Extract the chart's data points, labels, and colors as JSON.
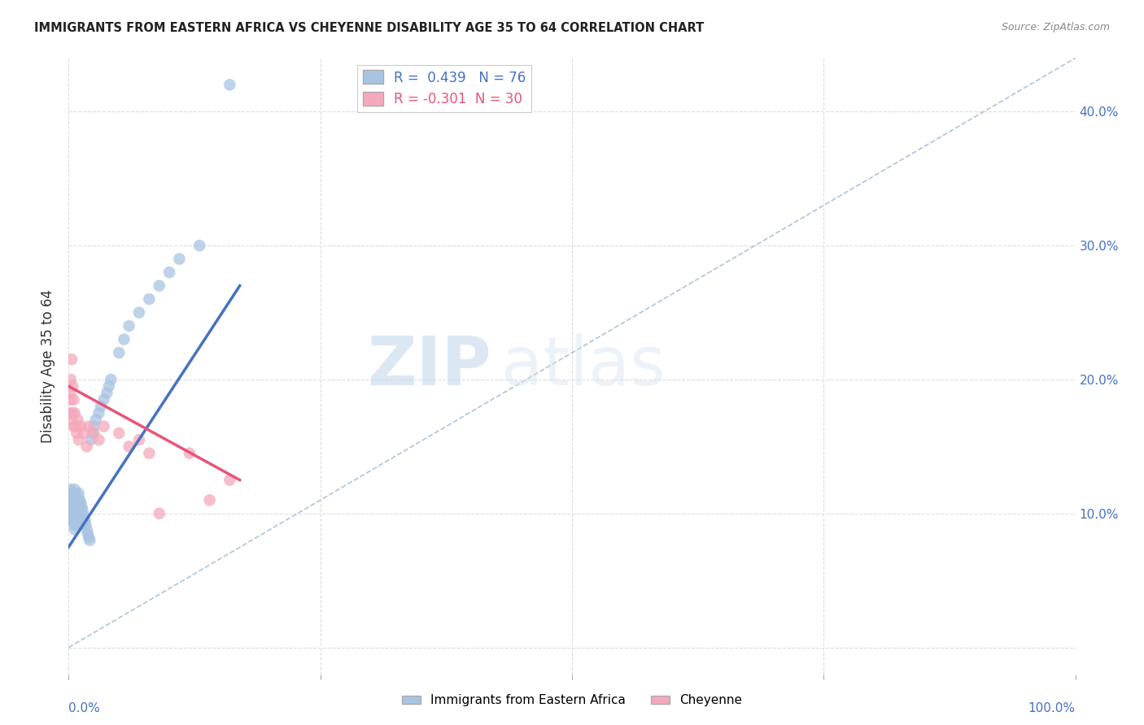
{
  "title": "IMMIGRANTS FROM EASTERN AFRICA VS CHEYENNE DISABILITY AGE 35 TO 64 CORRELATION CHART",
  "source": "Source: ZipAtlas.com",
  "ylabel": "Disability Age 35 to 64",
  "xlim": [
    0.0,
    1.0
  ],
  "ylim": [
    -0.02,
    0.44
  ],
  "yticks": [
    0.0,
    0.1,
    0.2,
    0.3,
    0.4
  ],
  "ytick_labels": [
    "",
    "10.0%",
    "20.0%",
    "30.0%",
    "40.0%"
  ],
  "xticks": [
    0.0,
    0.25,
    0.5,
    0.75,
    1.0
  ],
  "xtick_labels": [
    "0.0%",
    "",
    "",
    "",
    "100.0%"
  ],
  "blue_R": 0.439,
  "blue_N": 76,
  "pink_R": -0.301,
  "pink_N": 30,
  "blue_color": "#a8c4e2",
  "pink_color": "#f5a8bc",
  "blue_line_color": "#4472c4",
  "pink_line_color": "#e8547a",
  "diagonal_color": "#b0c4d8",
  "blue_scatter_x": [
    0.001,
    0.001,
    0.001,
    0.002,
    0.002,
    0.002,
    0.002,
    0.003,
    0.003,
    0.003,
    0.003,
    0.003,
    0.004,
    0.004,
    0.004,
    0.004,
    0.005,
    0.005,
    0.005,
    0.005,
    0.005,
    0.006,
    0.006,
    0.006,
    0.006,
    0.006,
    0.006,
    0.007,
    0.007,
    0.007,
    0.007,
    0.007,
    0.008,
    0.008,
    0.008,
    0.009,
    0.009,
    0.01,
    0.01,
    0.01,
    0.01,
    0.011,
    0.011,
    0.012,
    0.012,
    0.013,
    0.013,
    0.014,
    0.015,
    0.015,
    0.016,
    0.017,
    0.018,
    0.019,
    0.02,
    0.021,
    0.022,
    0.024,
    0.025,
    0.027,
    0.03,
    0.032,
    0.035,
    0.038,
    0.04,
    0.042,
    0.05,
    0.055,
    0.06,
    0.07,
    0.08,
    0.09,
    0.1,
    0.11,
    0.13,
    0.16
  ],
  "blue_scatter_y": [
    0.112,
    0.108,
    0.104,
    0.118,
    0.11,
    0.106,
    0.1,
    0.115,
    0.108,
    0.102,
    0.098,
    0.095,
    0.113,
    0.107,
    0.102,
    0.095,
    0.115,
    0.108,
    0.103,
    0.097,
    0.092,
    0.118,
    0.112,
    0.106,
    0.1,
    0.094,
    0.088,
    0.115,
    0.109,
    0.103,
    0.097,
    0.091,
    0.112,
    0.105,
    0.098,
    0.108,
    0.102,
    0.115,
    0.108,
    0.102,
    0.096,
    0.11,
    0.103,
    0.108,
    0.1,
    0.105,
    0.098,
    0.102,
    0.098,
    0.092,
    0.095,
    0.092,
    0.088,
    0.085,
    0.082,
    0.08,
    0.155,
    0.16,
    0.165,
    0.17,
    0.175,
    0.18,
    0.185,
    0.19,
    0.195,
    0.2,
    0.22,
    0.23,
    0.24,
    0.25,
    0.26,
    0.27,
    0.28,
    0.29,
    0.3,
    0.42
  ],
  "pink_scatter_x": [
    0.001,
    0.001,
    0.002,
    0.002,
    0.003,
    0.003,
    0.004,
    0.004,
    0.005,
    0.005,
    0.006,
    0.007,
    0.008,
    0.009,
    0.01,
    0.012,
    0.015,
    0.018,
    0.02,
    0.025,
    0.03,
    0.035,
    0.05,
    0.06,
    0.07,
    0.08,
    0.09,
    0.12,
    0.14,
    0.16
  ],
  "pink_scatter_y": [
    0.19,
    0.175,
    0.2,
    0.185,
    0.215,
    0.17,
    0.195,
    0.175,
    0.165,
    0.185,
    0.175,
    0.165,
    0.16,
    0.17,
    0.155,
    0.165,
    0.16,
    0.15,
    0.165,
    0.16,
    0.155,
    0.165,
    0.16,
    0.15,
    0.155,
    0.145,
    0.1,
    0.145,
    0.11,
    0.125
  ],
  "blue_line_x": [
    0.0,
    0.17
  ],
  "blue_line_y": [
    0.075,
    0.27
  ],
  "pink_line_x": [
    0.0,
    0.17
  ],
  "pink_line_y": [
    0.195,
    0.125
  ],
  "diag_line_x": [
    0.0,
    1.0
  ],
  "diag_line_y": [
    0.0,
    0.44
  ]
}
